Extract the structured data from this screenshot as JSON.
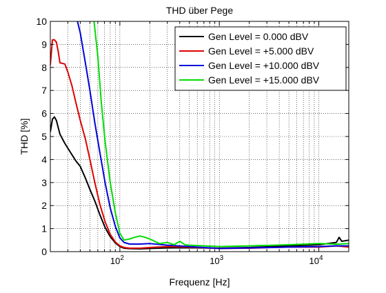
{
  "chart_data": {
    "type": "line",
    "title": "THD über Pege",
    "xlabel": "Frequenz [Hz]",
    "ylabel": "THD [%]",
    "xscale": "log",
    "xlim": [
      20,
      20000
    ],
    "ylim": [
      0,
      10
    ],
    "grid": "dotted",
    "legend_position": "top-right",
    "x_ticks": [
      {
        "value": 100,
        "base": "10",
        "exp": "2"
      },
      {
        "value": 1000,
        "base": "10",
        "exp": "3"
      },
      {
        "value": 10000,
        "base": "10",
        "exp": "4"
      }
    ],
    "y_ticks": [
      "0",
      "1",
      "2",
      "3",
      "4",
      "5",
      "6",
      "7",
      "8",
      "9",
      "10"
    ],
    "series": [
      {
        "name": "Gen Level = 0.000 dBV",
        "color": "#000000",
        "points": [
          [
            20,
            5.2
          ],
          [
            21,
            5.75
          ],
          [
            22,
            5.85
          ],
          [
            23,
            5.7
          ],
          [
            25,
            5.1
          ],
          [
            28,
            4.7
          ],
          [
            32,
            4.3
          ],
          [
            36,
            3.95
          ],
          [
            40,
            3.7
          ],
          [
            45,
            3.2
          ],
          [
            50,
            2.7
          ],
          [
            56,
            2.2
          ],
          [
            63,
            1.6
          ],
          [
            71,
            1.05
          ],
          [
            80,
            0.65
          ],
          [
            90,
            0.38
          ],
          [
            100,
            0.22
          ],
          [
            110,
            0.15
          ],
          [
            125,
            0.13
          ],
          [
            160,
            0.12
          ],
          [
            200,
            0.14
          ],
          [
            300,
            0.16
          ],
          [
            500,
            0.17
          ],
          [
            1000,
            0.15
          ],
          [
            2000,
            0.18
          ],
          [
            5000,
            0.25
          ],
          [
            10000,
            0.3
          ],
          [
            15000,
            0.4
          ],
          [
            16000,
            0.62
          ],
          [
            17000,
            0.45
          ],
          [
            20000,
            0.5
          ]
        ]
      },
      {
        "name": "Gen Level = +5.000 dBV",
        "color": "#dd0000",
        "points": [
          [
            20,
            8.1
          ],
          [
            21,
            9.2
          ],
          [
            22,
            9.2
          ],
          [
            23,
            9.1
          ],
          [
            24,
            8.7
          ],
          [
            25,
            8.2
          ],
          [
            28,
            8.15
          ],
          [
            30,
            7.8
          ],
          [
            33,
            7.2
          ],
          [
            36,
            6.5
          ],
          [
            40,
            5.7
          ],
          [
            45,
            4.9
          ],
          [
            50,
            4.0
          ],
          [
            56,
            3.0
          ],
          [
            63,
            2.05
          ],
          [
            71,
            1.3
          ],
          [
            80,
            0.75
          ],
          [
            90,
            0.42
          ],
          [
            100,
            0.25
          ],
          [
            110,
            0.18
          ],
          [
            125,
            0.15
          ],
          [
            160,
            0.15
          ],
          [
            200,
            0.18
          ],
          [
            300,
            0.22
          ],
          [
            500,
            0.2
          ],
          [
            1000,
            0.14
          ],
          [
            2000,
            0.15
          ],
          [
            5000,
            0.2
          ],
          [
            10000,
            0.2
          ],
          [
            15000,
            0.25
          ],
          [
            20000,
            0.2
          ]
        ]
      },
      {
        "name": "Gen Level = +10.000 dBV",
        "color": "#0000dd",
        "points": [
          [
            37.5,
            10
          ],
          [
            40,
            9.5
          ],
          [
            45,
            8.2
          ],
          [
            50,
            7.0
          ],
          [
            56,
            5.6
          ],
          [
            63,
            4.3
          ],
          [
            71,
            3.0
          ],
          [
            80,
            1.9
          ],
          [
            90,
            1.1
          ],
          [
            100,
            0.6
          ],
          [
            110,
            0.4
          ],
          [
            125,
            0.33
          ],
          [
            160,
            0.33
          ],
          [
            200,
            0.35
          ],
          [
            300,
            0.28
          ],
          [
            500,
            0.22
          ],
          [
            1000,
            0.14
          ],
          [
            2000,
            0.16
          ],
          [
            5000,
            0.2
          ],
          [
            10000,
            0.22
          ],
          [
            15000,
            0.25
          ],
          [
            20000,
            0.25
          ]
        ]
      },
      {
        "name": "Gen Level = +15.000 dBV",
        "color": "#00dd00",
        "points": [
          [
            55,
            10
          ],
          [
            60,
            8.5
          ],
          [
            65,
            6.5
          ],
          [
            71,
            4.8
          ],
          [
            80,
            3.0
          ],
          [
            90,
            1.7
          ],
          [
            100,
            0.8
          ],
          [
            110,
            0.5
          ],
          [
            125,
            0.55
          ],
          [
            140,
            0.62
          ],
          [
            160,
            0.68
          ],
          [
            180,
            0.62
          ],
          [
            200,
            0.55
          ],
          [
            250,
            0.35
          ],
          [
            300,
            0.4
          ],
          [
            350,
            0.3
          ],
          [
            400,
            0.45
          ],
          [
            450,
            0.3
          ],
          [
            500,
            0.28
          ],
          [
            700,
            0.25
          ],
          [
            1000,
            0.22
          ],
          [
            2000,
            0.25
          ],
          [
            5000,
            0.3
          ],
          [
            10000,
            0.35
          ],
          [
            15000,
            0.32
          ],
          [
            20000,
            0.35
          ]
        ]
      }
    ]
  }
}
